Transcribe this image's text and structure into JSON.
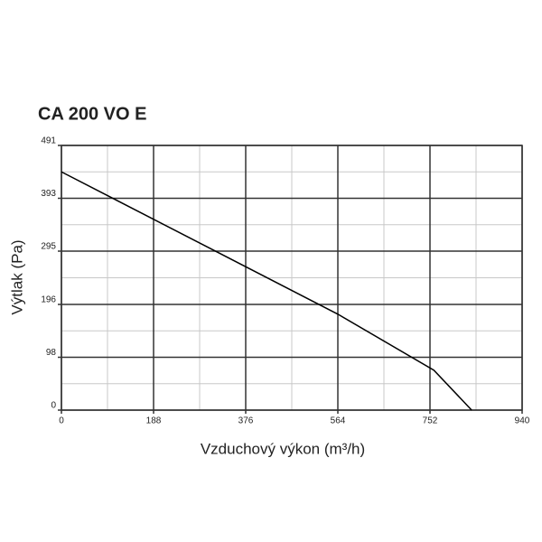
{
  "chart_data": {
    "type": "line",
    "title": "CA 200 VO E",
    "x_label": "Vzduchový výkon (m³/h)",
    "y_label": "Výtlak (Pa)",
    "x": [
      0,
      564,
      760,
      837
    ],
    "series": [
      {
        "color": "#000000",
        "values": [
          442,
          178,
          74,
          0
        ]
      }
    ],
    "xlim": [
      0,
      940
    ],
    "xticks": [
      0,
      188,
      376,
      564,
      752,
      940
    ],
    "ylim": [
      0,
      491
    ],
    "yticks": [
      0,
      98,
      196,
      295,
      393,
      491
    ],
    "grid": true,
    "minor_grid": true
  }
}
